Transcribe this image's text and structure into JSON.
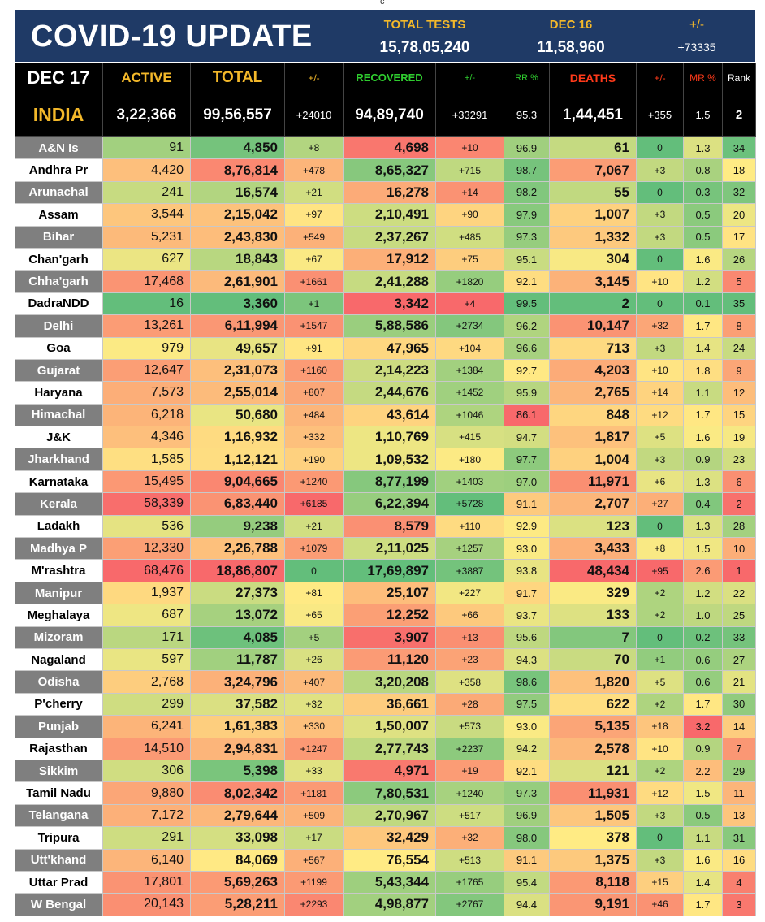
{
  "top_mark": "c",
  "banner": {
    "title": "COVID-19 UPDATE",
    "total_tests_label": "TOTAL TESTS",
    "total_tests_value": "15,78,05,240",
    "dec16_label": "DEC 16",
    "dec16_value": "11,58,960",
    "change_label": "+/-",
    "change_value": "+73335"
  },
  "headers": [
    "DEC 17",
    "ACTIVE",
    "TOTAL",
    "+/-",
    "RECOVERED",
    "+/-",
    "RR %",
    "DEATHS",
    "+/-",
    "MR %",
    "Rank"
  ],
  "india": [
    "INDIA",
    "3,22,366",
    "99,56,557",
    "+24010",
    "94,89,740",
    "+33291",
    "95.3",
    "1,44,451",
    "+355",
    "1.5",
    "2"
  ],
  "colors": {
    "banner": "#1f3a66",
    "header_orange": "#f3b82a",
    "header_green": "#2fcc2f",
    "header_red": "#ff3a1a",
    "heat_green": "#63be7b",
    "heat_yellow": "#ffeb84",
    "heat_red": "#f8696b"
  },
  "states": [
    {
      "name": "A&N Is",
      "cells": [
        "91",
        "4,850",
        "+8",
        "4,698",
        "+10",
        "96.9",
        "61",
        "0",
        "1.3",
        "34"
      ]
    },
    {
      "name": "Andhra Pr",
      "cells": [
        "4,420",
        "8,76,814",
        "+478",
        "8,65,327",
        "+715",
        "98.7",
        "7,067",
        "+3",
        "0.8",
        "18"
      ]
    },
    {
      "name": "Arunachal",
      "cells": [
        "241",
        "16,574",
        "+21",
        "16,278",
        "+14",
        "98.2",
        "55",
        "0",
        "0.3",
        "32"
      ]
    },
    {
      "name": "Assam",
      "cells": [
        "3,544",
        "2,15,042",
        "+97",
        "2,10,491",
        "+90",
        "97.9",
        "1,007",
        "+3",
        "0.5",
        "20"
      ]
    },
    {
      "name": "Bihar",
      "cells": [
        "5,231",
        "2,43,830",
        "+549",
        "2,37,267",
        "+485",
        "97.3",
        "1,332",
        "+3",
        "0.5",
        "17"
      ]
    },
    {
      "name": "Chan'garh",
      "cells": [
        "627",
        "18,843",
        "+67",
        "17,912",
        "+75",
        "95.1",
        "304",
        "0",
        "1.6",
        "26"
      ]
    },
    {
      "name": "Chha'garh",
      "cells": [
        "17,468",
        "2,61,901",
        "+1661",
        "2,41,288",
        "+1820",
        "92.1",
        "3,145",
        "+10",
        "1.2",
        "5"
      ]
    },
    {
      "name": "DadraNDD",
      "cells": [
        "16",
        "3,360",
        "+1",
        "3,342",
        "+4",
        "99.5",
        "2",
        "0",
        "0.1",
        "35"
      ]
    },
    {
      "name": "Delhi",
      "cells": [
        "13,261",
        "6,11,994",
        "+1547",
        "5,88,586",
        "+2734",
        "96.2",
        "10,147",
        "+32",
        "1.7",
        "8"
      ]
    },
    {
      "name": "Goa",
      "cells": [
        "979",
        "49,657",
        "+91",
        "47,965",
        "+104",
        "96.6",
        "713",
        "+3",
        "1.4",
        "24"
      ]
    },
    {
      "name": "Gujarat",
      "cells": [
        "12,647",
        "2,31,073",
        "+1160",
        "2,14,223",
        "+1384",
        "92.7",
        "4,203",
        "+10",
        "1.8",
        "9"
      ]
    },
    {
      "name": "Haryana",
      "cells": [
        "7,573",
        "2,55,014",
        "+807",
        "2,44,676",
        "+1452",
        "95.9",
        "2,765",
        "+14",
        "1.1",
        "12"
      ]
    },
    {
      "name": "Himachal",
      "cells": [
        "6,218",
        "50,680",
        "+484",
        "43,614",
        "+1046",
        "86.1",
        "848",
        "+12",
        "1.7",
        "15"
      ]
    },
    {
      "name": "J&K",
      "cells": [
        "4,346",
        "1,16,932",
        "+332",
        "1,10,769",
        "+415",
        "94.7",
        "1,817",
        "+5",
        "1.6",
        "19"
      ]
    },
    {
      "name": "Jharkhand",
      "cells": [
        "1,585",
        "1,12,121",
        "+190",
        "1,09,532",
        "+180",
        "97.7",
        "1,004",
        "+3",
        "0.9",
        "23"
      ]
    },
    {
      "name": "Karnataka",
      "cells": [
        "15,495",
        "9,04,665",
        "+1240",
        "8,77,199",
        "+1403",
        "97.0",
        "11,971",
        "+6",
        "1.3",
        "6"
      ]
    },
    {
      "name": "Kerala",
      "cells": [
        "58,339",
        "6,83,440",
        "+6185",
        "6,22,394",
        "+5728",
        "91.1",
        "2,707",
        "+27",
        "0.4",
        "2"
      ]
    },
    {
      "name": "Ladakh",
      "cells": [
        "536",
        "9,238",
        "+21",
        "8,579",
        "+110",
        "92.9",
        "123",
        "0",
        "1.3",
        "28"
      ]
    },
    {
      "name": "Madhya P",
      "cells": [
        "12,330",
        "2,26,788",
        "+1079",
        "2,11,025",
        "+1257",
        "93.0",
        "3,433",
        "+8",
        "1.5",
        "10"
      ]
    },
    {
      "name": "M'rashtra",
      "cells": [
        "68,476",
        "18,86,807",
        "0",
        "17,69,897",
        "+3887",
        "93.8",
        "48,434",
        "+95",
        "2.6",
        "1"
      ]
    },
    {
      "name": "Manipur",
      "cells": [
        "1,937",
        "27,373",
        "+81",
        "25,107",
        "+227",
        "91.7",
        "329",
        "+2",
        "1.2",
        "22"
      ]
    },
    {
      "name": "Meghalaya",
      "cells": [
        "687",
        "13,072",
        "+65",
        "12,252",
        "+66",
        "93.7",
        "133",
        "+2",
        "1.0",
        "25"
      ]
    },
    {
      "name": "Mizoram",
      "cells": [
        "171",
        "4,085",
        "+5",
        "3,907",
        "+13",
        "95.6",
        "7",
        "0",
        "0.2",
        "33"
      ]
    },
    {
      "name": "Nagaland",
      "cells": [
        "597",
        "11,787",
        "+26",
        "11,120",
        "+23",
        "94.3",
        "70",
        "+1",
        "0.6",
        "27"
      ]
    },
    {
      "name": "Odisha",
      "cells": [
        "2,768",
        "3,24,796",
        "+407",
        "3,20,208",
        "+358",
        "98.6",
        "1,820",
        "+5",
        "0.6",
        "21"
      ]
    },
    {
      "name": "P'cherry",
      "cells": [
        "299",
        "37,582",
        "+32",
        "36,661",
        "+28",
        "97.5",
        "622",
        "+2",
        "1.7",
        "30"
      ]
    },
    {
      "name": "Punjab",
      "cells": [
        "6,241",
        "1,61,383",
        "+330",
        "1,50,007",
        "+573",
        "93.0",
        "5,135",
        "+18",
        "3.2",
        "14"
      ]
    },
    {
      "name": "Rajasthan",
      "cells": [
        "14,510",
        "2,94,831",
        "+1247",
        "2,77,743",
        "+2237",
        "94.2",
        "2,578",
        "+10",
        "0.9",
        "7"
      ]
    },
    {
      "name": "Sikkim",
      "cells": [
        "306",
        "5,398",
        "+33",
        "4,971",
        "+19",
        "92.1",
        "121",
        "+2",
        "2.2",
        "29"
      ]
    },
    {
      "name": "Tamil Nadu",
      "cells": [
        "9,880",
        "8,02,342",
        "+1181",
        "7,80,531",
        "+1240",
        "97.3",
        "11,931",
        "+12",
        "1.5",
        "11"
      ]
    },
    {
      "name": "Telangana",
      "cells": [
        "7,172",
        "2,79,644",
        "+509",
        "2,70,967",
        "+517",
        "96.9",
        "1,505",
        "+3",
        "0.5",
        "13"
      ]
    },
    {
      "name": "Tripura",
      "cells": [
        "291",
        "33,098",
        "+17",
        "32,429",
        "+32",
        "98.0",
        "378",
        "0",
        "1.1",
        "31"
      ]
    },
    {
      "name": "Utt'khand",
      "cells": [
        "6,140",
        "84,069",
        "+567",
        "76,554",
        "+513",
        "91.1",
        "1,375",
        "+3",
        "1.6",
        "16"
      ]
    },
    {
      "name": "Uttar Prad",
      "cells": [
        "17,801",
        "5,69,263",
        "+1199",
        "5,43,344",
        "+1765",
        "95.4",
        "8,118",
        "+15",
        "1.4",
        "4"
      ]
    },
    {
      "name": "W Bengal",
      "cells": [
        "20,143",
        "5,28,211",
        "+2293",
        "4,98,877",
        "+2767",
        "94.4",
        "9,191",
        "+46",
        "1.7",
        "3"
      ]
    }
  ]
}
